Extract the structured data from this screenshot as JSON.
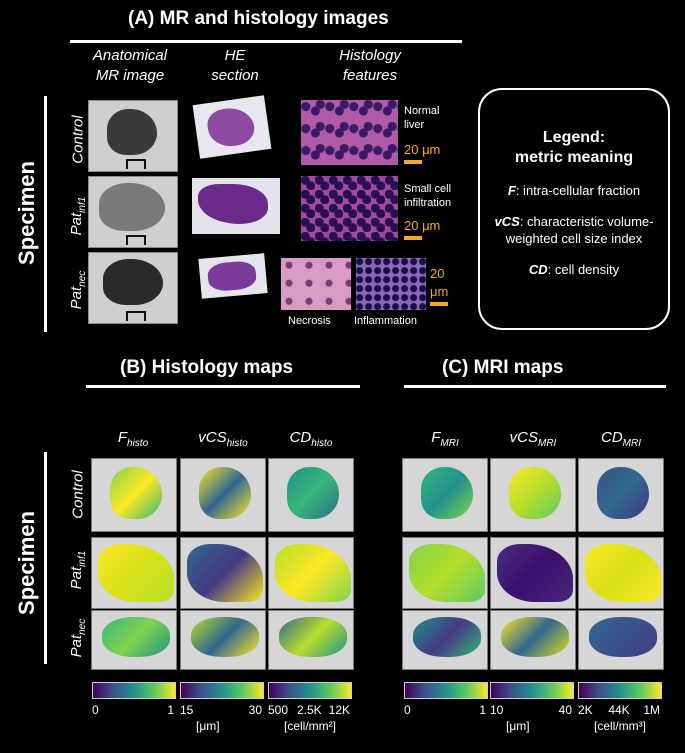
{
  "sectionA": {
    "title": "(A) MR and histology images",
    "col_headers": [
      [
        "Anatomical",
        "MR image"
      ],
      [
        "HE",
        "section"
      ],
      [
        "Histology",
        "features"
      ]
    ],
    "rows": [
      "Control",
      "Pat",
      "Pat"
    ],
    "row_subs": [
      "",
      "inf1",
      "nec"
    ],
    "feature_notes": [
      [
        "Normal",
        "liver"
      ],
      [
        "Small cell",
        "infiltration"
      ]
    ],
    "scale_label": "20 μm",
    "scale_label_split": [
      "20",
      "μm"
    ],
    "necrosis": "Necrosis",
    "inflammation": "Inflammation",
    "specimen": "Specimen"
  },
  "legend": {
    "title1": "Legend:",
    "title2": "metric meaning",
    "items": [
      {
        "key": "F",
        "text": ": intra-cellular fraction"
      },
      {
        "key": "vCS",
        "text": ": characteristic volume-weighted cell size index"
      },
      {
        "key": "CD",
        "text": ": cell density"
      }
    ]
  },
  "sectionB": {
    "title": "(B) Histology maps",
    "cols": [
      {
        "base": "F",
        "sub": "histo"
      },
      {
        "base": "vCS",
        "sub": "histo"
      },
      {
        "base": "CD",
        "sub": "histo"
      }
    ],
    "colorbars": [
      {
        "ticks": [
          "0",
          "1"
        ],
        "unit": ""
      },
      {
        "ticks": [
          "15",
          "30"
        ],
        "unit": "[μm]"
      },
      {
        "ticks": [
          "500",
          "2.5K",
          "12K"
        ],
        "unit": "[cell/mm²]"
      }
    ]
  },
  "sectionC": {
    "title": "(C) MRI maps",
    "cols": [
      {
        "base": "F",
        "sub": "MRI"
      },
      {
        "base": "vCS",
        "sub": "MRI"
      },
      {
        "base": "CD",
        "sub": "MRI"
      }
    ],
    "colorbars": [
      {
        "ticks": [
          "0",
          "1"
        ],
        "unit": ""
      },
      {
        "ticks": [
          "10",
          "40"
        ],
        "unit": "[μm]"
      },
      {
        "ticks": [
          "2K",
          "44K",
          "1M"
        ],
        "unit": "[cell/mm³]"
      }
    ]
  },
  "colors": {
    "accent": "#f5a623",
    "viridis_start": "#440154",
    "viridis_end": "#fde725"
  }
}
